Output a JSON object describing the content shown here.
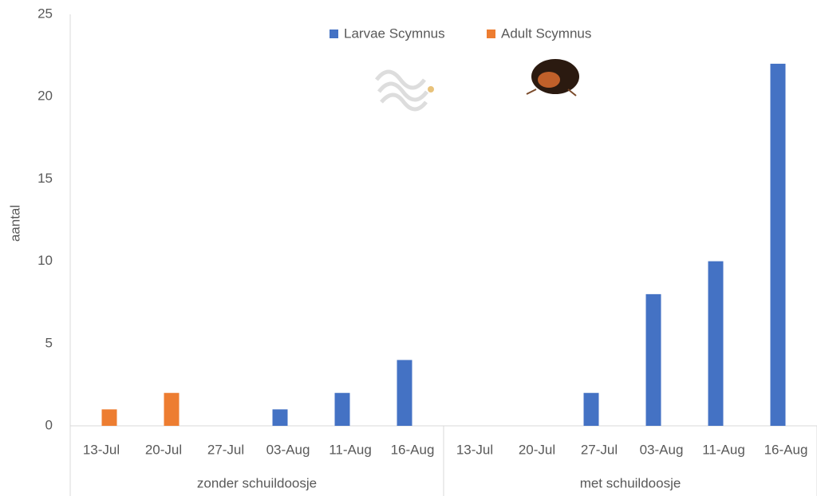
{
  "chart_data": {
    "type": "bar",
    "y_label": "aantal",
    "categories": [
      "13-Jul",
      "20-Jul",
      "27-Jul",
      "03-Aug",
      "11-Aug",
      "16-Aug",
      "13-Jul",
      "20-Jul",
      "27-Jul",
      "03-Aug",
      "11-Aug",
      "16-Aug"
    ],
    "groups": [
      {
        "name": "zonder schuildoosje",
        "size": 6
      },
      {
        "name": "met schuildoosje",
        "size": 6
      }
    ],
    "series": [
      {
        "name": "Larvae Scymnus",
        "color": "#4472c4",
        "values": [
          0,
          0,
          0,
          1,
          2,
          4,
          0,
          0,
          2,
          8,
          10,
          22
        ]
      },
      {
        "name": "Adult Scymnus",
        "color": "#ed7d31",
        "values": [
          1,
          2,
          0,
          0,
          0,
          0,
          0,
          0,
          0,
          0,
          0,
          0
        ]
      }
    ],
    "ylim": [
      0,
      25
    ],
    "yticks": [
      0,
      5,
      10,
      15,
      20,
      25
    ],
    "grid": false,
    "legend": "top"
  }
}
